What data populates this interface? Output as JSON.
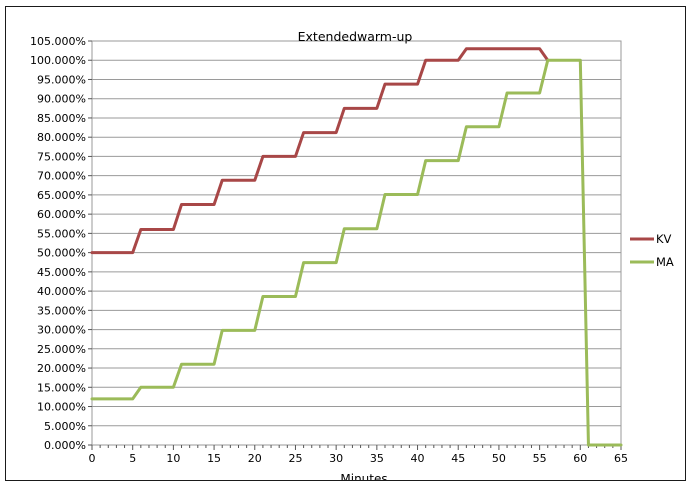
{
  "chart_data": {
    "type": "line",
    "title": "Extendedwarm-up",
    "xlabel": "Minutes",
    "ylabel": "",
    "xlim": [
      0,
      65
    ],
    "ylim": [
      0,
      105
    ],
    "x_ticks": [
      "0",
      "5",
      "10",
      "15",
      "20",
      "25",
      "30",
      "35",
      "40",
      "45",
      "50",
      "55",
      "60",
      "65"
    ],
    "y_ticks": [
      "0.000%",
      "5.000%",
      "10.000%",
      "15.000%",
      "20.000%",
      "25.000%",
      "30.000%",
      "35.000%",
      "40.000%",
      "45.000%",
      "50.000%",
      "55.000%",
      "60.000%",
      "65.000%",
      "70.000%",
      "75.000%",
      "80.000%",
      "85.000%",
      "90.000%",
      "95.000%",
      "100.000%",
      "105.000%"
    ],
    "grid": true,
    "legend_position": "right",
    "series": [
      {
        "name": "KV",
        "color": "#a84747",
        "x": [
          0,
          5,
          6,
          10,
          11,
          15,
          16,
          20,
          21,
          25,
          26,
          30,
          31,
          35,
          36,
          40,
          41,
          45,
          46,
          55,
          56
        ],
        "y": [
          50,
          50,
          56,
          56,
          62.5,
          62.5,
          68.8,
          68.8,
          75,
          75,
          81.2,
          81.2,
          87.5,
          87.5,
          93.8,
          93.8,
          100,
          100,
          103,
          103,
          100
        ]
      },
      {
        "name": "MA",
        "color": "#9bbb59",
        "x": [
          0,
          5,
          6,
          10,
          11,
          15,
          16,
          20,
          21,
          25,
          26,
          30,
          31,
          35,
          36,
          40,
          41,
          45,
          46,
          50,
          51,
          55,
          56,
          60,
          61,
          65
        ],
        "y": [
          12,
          12,
          15,
          15,
          21,
          21,
          29.8,
          29.8,
          38.6,
          38.6,
          47.4,
          47.4,
          56.2,
          56.2,
          65.1,
          65.1,
          73.9,
          73.9,
          82.7,
          82.7,
          91.5,
          91.5,
          100,
          100,
          0,
          0
        ]
      }
    ]
  }
}
